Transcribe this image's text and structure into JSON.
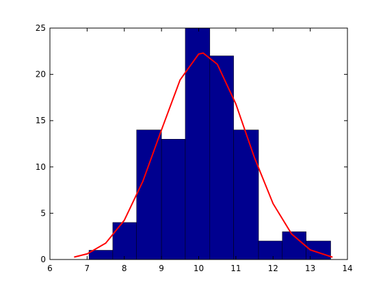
{
  "chart_data": {
    "type": "histogram",
    "bins": [
      7.05,
      7.69,
      8.33,
      9.0,
      9.64,
      10.3,
      10.94,
      11.61,
      12.25,
      12.89,
      13.55
    ],
    "values": [
      1,
      4,
      14,
      13,
      25,
      22,
      14,
      2,
      3,
      2
    ],
    "color": "#00008f",
    "fit": {
      "type": "line",
      "color": "#ff0000",
      "x": [
        6.65,
        7.0,
        7.5,
        8.0,
        8.5,
        9.0,
        9.5,
        10.0,
        10.12,
        10.5,
        11.0,
        11.5,
        12.0,
        12.5,
        13.0,
        13.6
      ],
      "values": [
        0.26,
        0.61,
        1.77,
        4.24,
        8.46,
        14.0,
        19.4,
        22.2,
        22.3,
        21.1,
        16.8,
        11.0,
        6.04,
        2.75,
        1.04,
        0.25
      ]
    },
    "xlim": [
      6,
      14
    ],
    "xticks": [
      6,
      7,
      8,
      9,
      10,
      11,
      12,
      13,
      14
    ],
    "ylim": [
      0,
      25
    ],
    "yticks": [
      0,
      5,
      10,
      15,
      20,
      25
    ]
  }
}
